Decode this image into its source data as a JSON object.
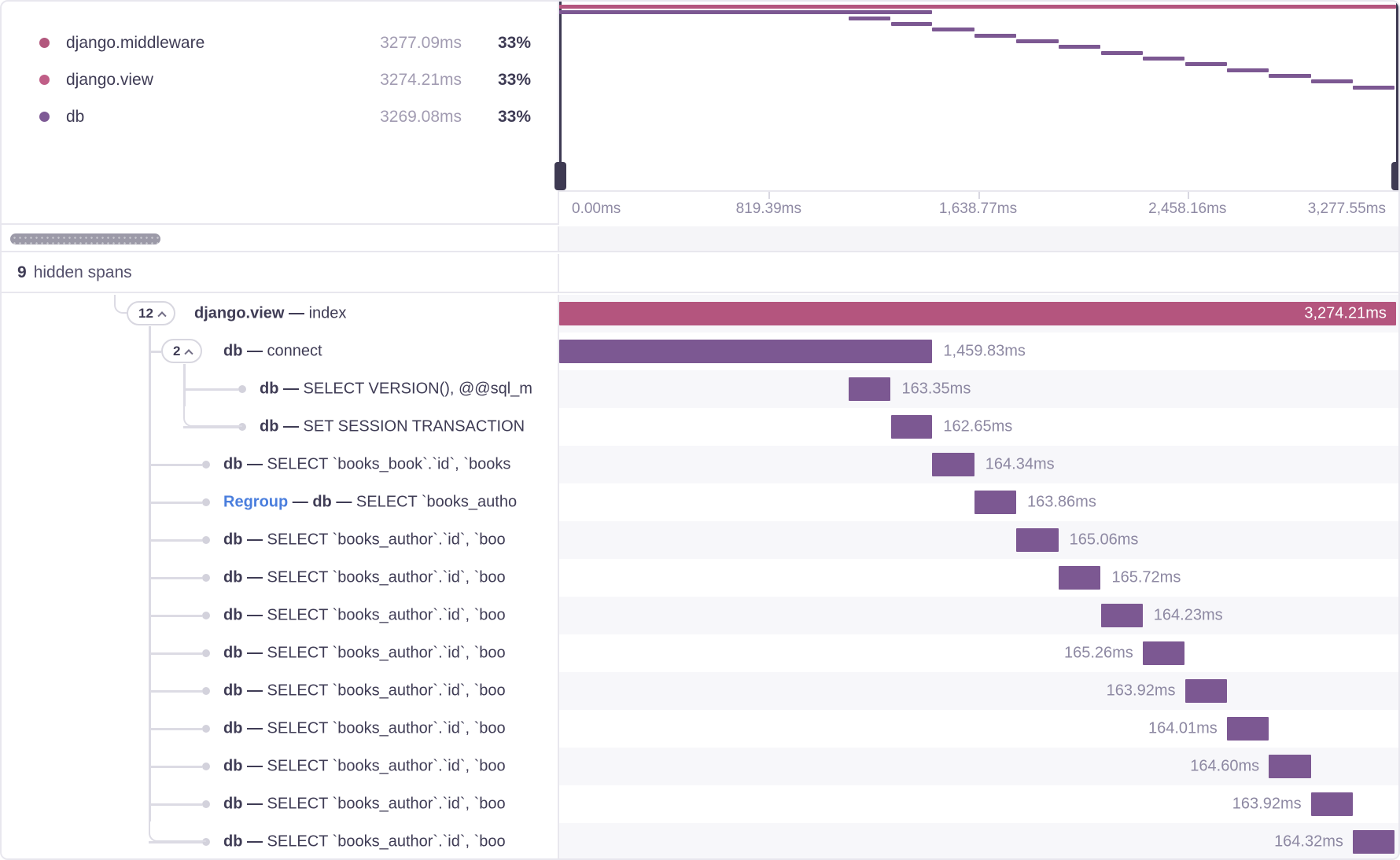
{
  "colors": {
    "view_bar": "#b4557e",
    "db_bar": "#7c5892",
    "middleware_dot": "#b2577d",
    "view_dot": "#c05e87",
    "db_dot": "#7e5a95"
  },
  "legend": {
    "items": [
      {
        "name": "django.middleware",
        "time": "3277.09ms",
        "pct": "33%",
        "color_key": "middleware_dot"
      },
      {
        "name": "django.view",
        "time": "3274.21ms",
        "pct": "33%",
        "color_key": "view_dot"
      },
      {
        "name": "db",
        "time": "3269.08ms",
        "pct": "33%",
        "color_key": "db_dot"
      }
    ]
  },
  "minimap": {
    "axis_ticks": [
      {
        "label": "0.00ms",
        "pos": 0,
        "align": "left"
      },
      {
        "label": "819.39ms",
        "pos": 0.25,
        "align": "center"
      },
      {
        "label": "1,638.77ms",
        "pos": 0.5,
        "align": "center"
      },
      {
        "label": "2,458.16ms",
        "pos": 0.75,
        "align": "center"
      },
      {
        "label": "3,277.55ms",
        "pos": 1,
        "align": "right"
      }
    ],
    "total_ms": 3277.55
  },
  "hidden_spans": {
    "count": "9",
    "label": "hidden spans"
  },
  "chart_data": {
    "type": "waterfall-trace",
    "total_ms": 3277.55,
    "spans": [
      {
        "badge": "12",
        "name": "django.view",
        "detail": "index",
        "level": 0,
        "start_ms": 0,
        "duration_ms": 3274.21,
        "time_label": "3,274.21ms",
        "label_side": "inside",
        "color_key": "view_bar"
      },
      {
        "badge": "2",
        "name": "db",
        "detail": "connect",
        "level": 1,
        "start_ms": 0,
        "duration_ms": 1459.83,
        "time_label": "1,459.83ms",
        "label_side": "right",
        "color_key": "db_bar"
      },
      {
        "name": "db",
        "detail": "SELECT VERSION(), @@sql_m",
        "level": 2,
        "start_ms": 1133.83,
        "duration_ms": 163.35,
        "time_label": "163.35ms",
        "label_side": "right",
        "color_key": "db_bar"
      },
      {
        "name": "db",
        "detail": "SET SESSION TRANSACTION",
        "level": 2,
        "start_ms": 1297.18,
        "duration_ms": 162.65,
        "time_label": "162.65ms",
        "label_side": "right",
        "color_key": "db_bar"
      },
      {
        "name": "db",
        "detail": "SELECT `books_book`.`id`, `books",
        "level": 1,
        "start_ms": 1459.83,
        "duration_ms": 164.34,
        "time_label": "164.34ms",
        "label_side": "right",
        "color_key": "db_bar"
      },
      {
        "prefix": "Regroup",
        "name": "db",
        "detail": "SELECT `books_autho",
        "level": 1,
        "start_ms": 1624.17,
        "duration_ms": 163.86,
        "time_label": "163.86ms",
        "label_side": "right",
        "color_key": "db_bar"
      },
      {
        "name": "db",
        "detail": "SELECT `books_author`.`id`, `boo",
        "level": 1,
        "start_ms": 1788.03,
        "duration_ms": 165.06,
        "time_label": "165.06ms",
        "label_side": "right",
        "color_key": "db_bar"
      },
      {
        "name": "db",
        "detail": "SELECT `books_author`.`id`, `boo",
        "level": 1,
        "start_ms": 1953.09,
        "duration_ms": 165.72,
        "time_label": "165.72ms",
        "label_side": "right",
        "color_key": "db_bar"
      },
      {
        "name": "db",
        "detail": "SELECT `books_author`.`id`, `boo",
        "level": 1,
        "start_ms": 2118.81,
        "duration_ms": 164.23,
        "time_label": "164.23ms",
        "label_side": "right",
        "color_key": "db_bar"
      },
      {
        "name": "db",
        "detail": "SELECT `books_author`.`id`, `boo",
        "level": 1,
        "start_ms": 2283.04,
        "duration_ms": 165.26,
        "time_label": "165.26ms",
        "label_side": "left",
        "color_key": "db_bar"
      },
      {
        "name": "db",
        "detail": "SELECT `books_author`.`id`, `boo",
        "level": 1,
        "start_ms": 2448.3,
        "duration_ms": 163.92,
        "time_label": "163.92ms",
        "label_side": "left",
        "color_key": "db_bar"
      },
      {
        "name": "db",
        "detail": "SELECT `books_author`.`id`, `boo",
        "level": 1,
        "start_ms": 2612.22,
        "duration_ms": 164.01,
        "time_label": "164.01ms",
        "label_side": "left",
        "color_key": "db_bar"
      },
      {
        "name": "db",
        "detail": "SELECT `books_author`.`id`, `boo",
        "level": 1,
        "start_ms": 2776.23,
        "duration_ms": 164.6,
        "time_label": "164.60ms",
        "label_side": "left",
        "color_key": "db_bar"
      },
      {
        "name": "db",
        "detail": "SELECT `books_author`.`id`, `boo",
        "level": 1,
        "start_ms": 2940.83,
        "duration_ms": 163.92,
        "time_label": "163.92ms",
        "label_side": "left",
        "color_key": "db_bar"
      },
      {
        "name": "db",
        "detail": "SELECT `books_author`.`id`, `boo",
        "level": 1,
        "start_ms": 3104.75,
        "duration_ms": 164.32,
        "time_label": "164.32ms",
        "label_side": "left",
        "color_key": "db_bar"
      }
    ]
  }
}
